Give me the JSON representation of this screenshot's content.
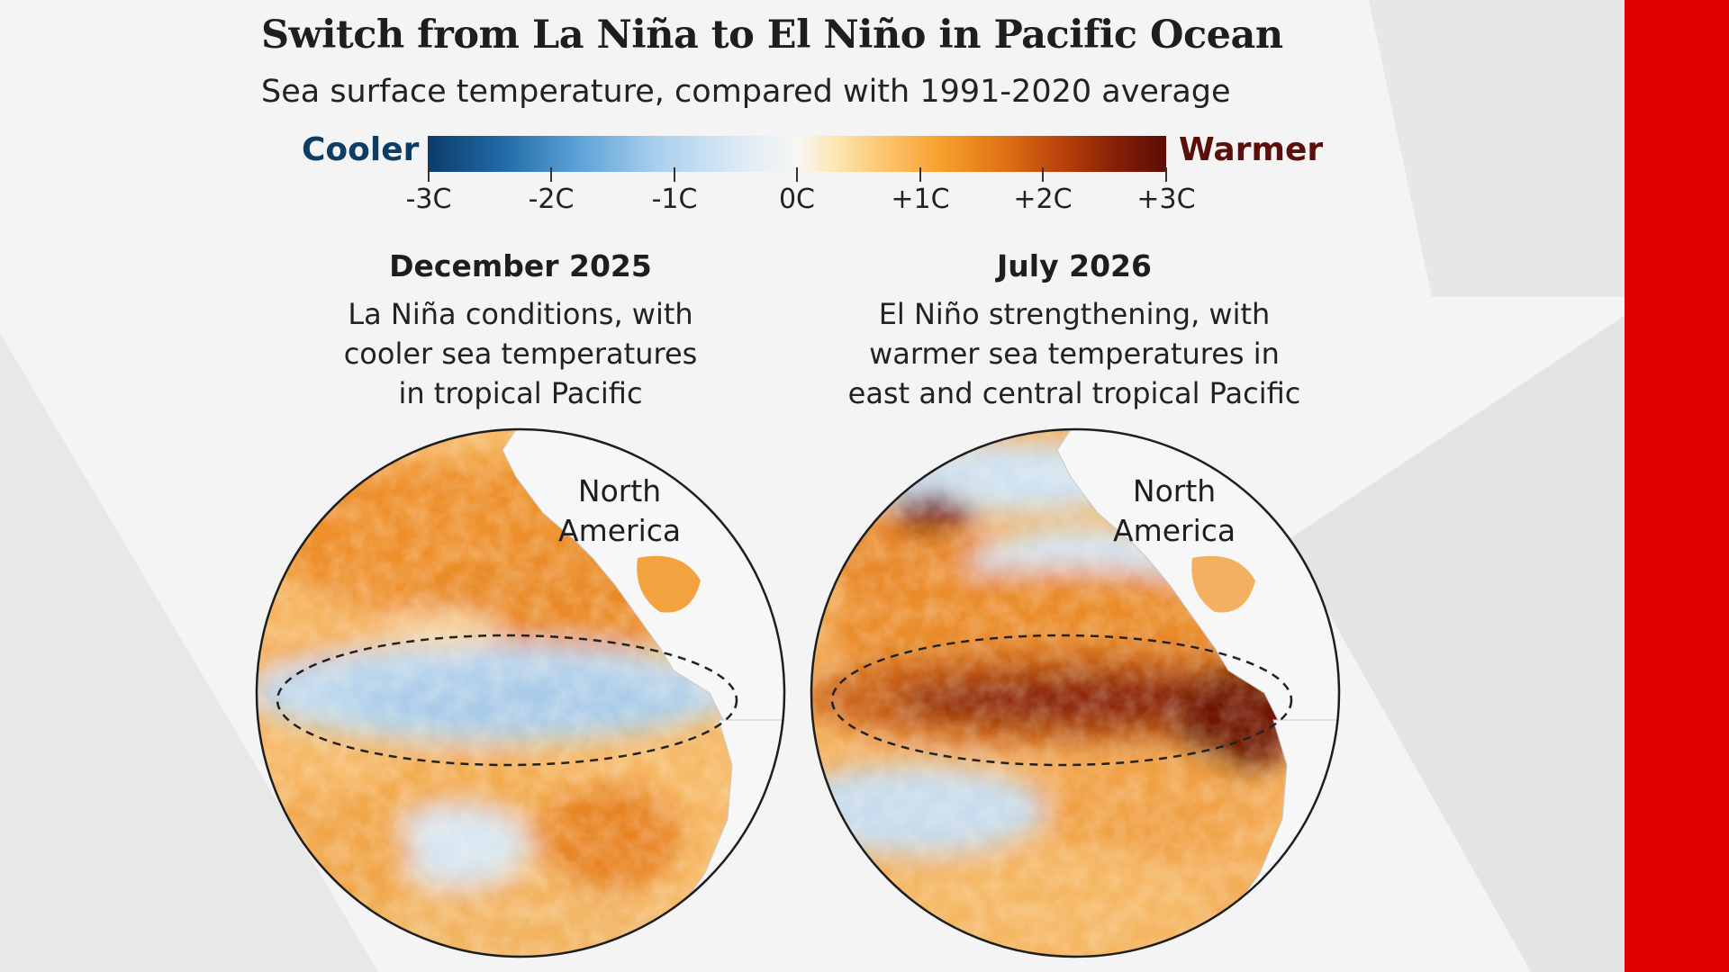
{
  "header": {
    "title": "Switch from La Niña to El Niño in Pacific Ocean",
    "subtitle": "Sea surface temperature, compared with 1991-2020 average"
  },
  "legend": {
    "low_label": "Cooler",
    "high_label": "Warmer",
    "low_color": "#0d3d63",
    "high_color": "#5a0f08",
    "ticks": [
      "-3C",
      "-2C",
      "-1C",
      "0C",
      "+1C",
      "+2C",
      "+3C"
    ]
  },
  "panels": [
    {
      "date": "December 2025",
      "description": [
        "La Niña conditions, with",
        "cooler sea temperatures",
        "in tropical Pacific"
      ],
      "region_label": [
        "North",
        "America"
      ],
      "condition": "La Niña"
    },
    {
      "date": "July 2026",
      "description": [
        "El Niño strengthening, with",
        "warmer sea temperatures in",
        "east and central tropical Pacific"
      ],
      "region_label": [
        "North",
        "America"
      ],
      "condition": "El Niño"
    }
  ],
  "colors": {
    "accent_bar": "#e10000",
    "cool": "#a9cfec",
    "warm": "#f69d2a",
    "hot": "#7a1805"
  }
}
